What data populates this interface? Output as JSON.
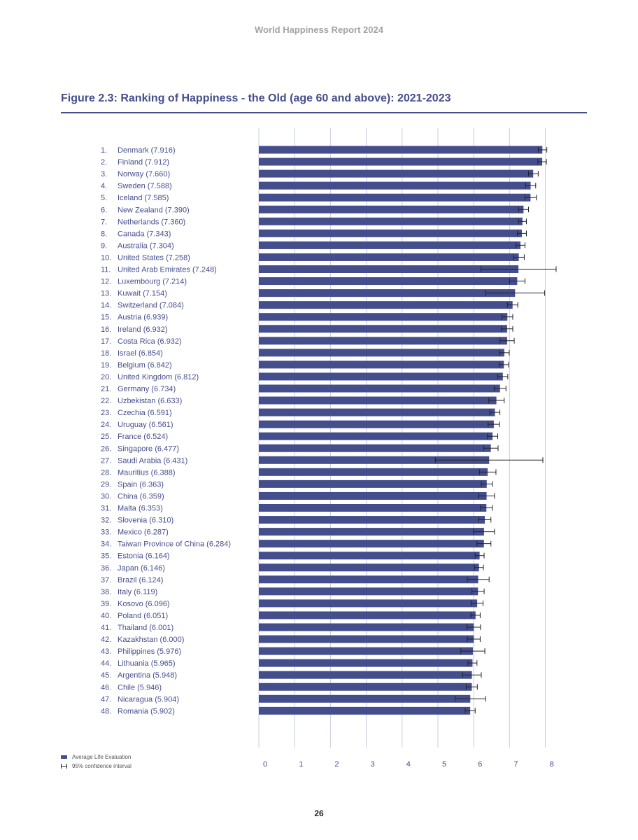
{
  "header": "World Happiness Report 2024",
  "page_number": "26",
  "legend": {
    "bar": "Average Life Evaluation",
    "ci": "95% confidence interval"
  },
  "colors": {
    "bar": "#454e8c",
    "grid": "#c9cce0",
    "whisker": "#222222"
  },
  "chart_data": {
    "type": "bar",
    "orientation": "horizontal",
    "title": "Figure 2.3: Ranking of Happiness - the Old (age 60 and above): 2021-2023",
    "xlim": [
      0,
      8
    ],
    "xticks": [
      "0",
      "1",
      "2",
      "3",
      "4",
      "5",
      "6",
      "7",
      "8"
    ],
    "grid": true,
    "legend_position": "bottom-left",
    "categories": [
      {
        "rank": "1.",
        "label": "Denmark (7.916)",
        "value": 7.916,
        "ci": [
          7.8,
          8.04
        ]
      },
      {
        "rank": "2.",
        "label": "Finland (7.912)",
        "value": 7.912,
        "ci": [
          7.79,
          8.03
        ]
      },
      {
        "rank": "3.",
        "label": "Norway (7.660)",
        "value": 7.66,
        "ci": [
          7.53,
          7.8
        ]
      },
      {
        "rank": "4.",
        "label": "Sweden (7.588)",
        "value": 7.588,
        "ci": [
          7.45,
          7.73
        ]
      },
      {
        "rank": "5.",
        "label": "Iceland (7.585)",
        "value": 7.585,
        "ci": [
          7.43,
          7.75
        ]
      },
      {
        "rank": "6.",
        "label": "New Zealand (7.390)",
        "value": 7.39,
        "ci": [
          7.25,
          7.53
        ]
      },
      {
        "rank": "7.",
        "label": "Netherlands (7.360)",
        "value": 7.36,
        "ci": [
          7.25,
          7.47
        ]
      },
      {
        "rank": "8.",
        "label": "Canada (7.343)",
        "value": 7.343,
        "ci": [
          7.22,
          7.47
        ]
      },
      {
        "rank": "9.",
        "label": "Australia (7.304)",
        "value": 7.304,
        "ci": [
          7.18,
          7.43
        ]
      },
      {
        "rank": "10.",
        "label": "United States (7.258)",
        "value": 7.258,
        "ci": [
          7.11,
          7.41
        ]
      },
      {
        "rank": "11.",
        "label": "United Arab Emirates (7.248)",
        "value": 7.248,
        "ci": [
          6.2,
          8.3
        ]
      },
      {
        "rank": "12.",
        "label": "Luxembourg (7.214)",
        "value": 7.214,
        "ci": [
          7.0,
          7.43
        ]
      },
      {
        "rank": "13.",
        "label": "Kuwait (7.154)",
        "value": 7.154,
        "ci": [
          6.33,
          7.98
        ]
      },
      {
        "rank": "14.",
        "label": "Switzerland (7.084)",
        "value": 7.084,
        "ci": [
          6.94,
          7.23
        ]
      },
      {
        "rank": "15.",
        "label": "Austria (6.939)",
        "value": 6.939,
        "ci": [
          6.79,
          7.09
        ]
      },
      {
        "rank": "16.",
        "label": "Ireland (6.932)",
        "value": 6.932,
        "ci": [
          6.77,
          7.09
        ]
      },
      {
        "rank": "17.",
        "label": "Costa Rica (6.932)",
        "value": 6.932,
        "ci": [
          6.73,
          7.13
        ]
      },
      {
        "rank": "18.",
        "label": "Israel (6.854)",
        "value": 6.854,
        "ci": [
          6.72,
          6.99
        ]
      },
      {
        "rank": "19.",
        "label": "Belgium (6.842)",
        "value": 6.842,
        "ci": [
          6.71,
          6.97
        ]
      },
      {
        "rank": "20.",
        "label": "United Kingdom (6.812)",
        "value": 6.812,
        "ci": [
          6.67,
          6.95
        ]
      },
      {
        "rank": "21.",
        "label": "Germany (6.734)",
        "value": 6.734,
        "ci": [
          6.57,
          6.9
        ]
      },
      {
        "rank": "22.",
        "label": "Uzbekistan (6.633)",
        "value": 6.633,
        "ci": [
          6.42,
          6.85
        ]
      },
      {
        "rank": "23.",
        "label": "Czechia (6.591)",
        "value": 6.591,
        "ci": [
          6.45,
          6.73
        ]
      },
      {
        "rank": "24.",
        "label": "Uruguay (6.561)",
        "value": 6.561,
        "ci": [
          6.4,
          6.72
        ]
      },
      {
        "rank": "25.",
        "label": "France (6.524)",
        "value": 6.524,
        "ci": [
          6.38,
          6.67
        ]
      },
      {
        "rank": "26.",
        "label": "Singapore (6.477)",
        "value": 6.477,
        "ci": [
          6.28,
          6.68
        ]
      },
      {
        "rank": "27.",
        "label": "Saudi Arabia (6.431)",
        "value": 6.431,
        "ci": [
          4.93,
          7.93
        ]
      },
      {
        "rank": "28.",
        "label": "Mauritius (6.388)",
        "value": 6.388,
        "ci": [
          6.16,
          6.62
        ]
      },
      {
        "rank": "29.",
        "label": "Spain (6.363)",
        "value": 6.363,
        "ci": [
          6.21,
          6.52
        ]
      },
      {
        "rank": "30.",
        "label": "China (6.359)",
        "value": 6.359,
        "ci": [
          6.14,
          6.58
        ]
      },
      {
        "rank": "31.",
        "label": "Malta (6.353)",
        "value": 6.353,
        "ci": [
          6.19,
          6.52
        ]
      },
      {
        "rank": "32.",
        "label": "Slovenia (6.310)",
        "value": 6.31,
        "ci": [
          6.14,
          6.48
        ]
      },
      {
        "rank": "33.",
        "label": "Mexico (6.287)",
        "value": 6.287,
        "ci": [
          5.99,
          6.58
        ]
      },
      {
        "rank": "34.",
        "label": "Taiwan Province of China (6.284)",
        "value": 6.284,
        "ci": [
          6.09,
          6.48
        ]
      },
      {
        "rank": "35.",
        "label": "Estonia (6.164)",
        "value": 6.164,
        "ci": [
          6.04,
          6.29
        ]
      },
      {
        "rank": "36.",
        "label": "Japan (6.146)",
        "value": 6.146,
        "ci": [
          6.02,
          6.27
        ]
      },
      {
        "rank": "37.",
        "label": "Brazil (6.124)",
        "value": 6.124,
        "ci": [
          5.82,
          6.43
        ]
      },
      {
        "rank": "38.",
        "label": "Italy (6.119)",
        "value": 6.119,
        "ci": [
          5.95,
          6.29
        ]
      },
      {
        "rank": "39.",
        "label": "Kosovo (6.096)",
        "value": 6.096,
        "ci": [
          5.93,
          6.26
        ]
      },
      {
        "rank": "40.",
        "label": "Poland (6.051)",
        "value": 6.051,
        "ci": [
          5.92,
          6.18
        ]
      },
      {
        "rank": "41.",
        "label": "Thailand (6.001)",
        "value": 6.001,
        "ci": [
          5.81,
          6.19
        ]
      },
      {
        "rank": "42.",
        "label": "Kazakhstan (6.000)",
        "value": 6.0,
        "ci": [
          5.82,
          6.18
        ]
      },
      {
        "rank": "43.",
        "label": "Philippines (5.976)",
        "value": 5.976,
        "ci": [
          5.64,
          6.31
        ]
      },
      {
        "rank": "44.",
        "label": "Lithuania (5.965)",
        "value": 5.965,
        "ci": [
          5.84,
          6.09
        ]
      },
      {
        "rank": "45.",
        "label": "Argentina (5.948)",
        "value": 5.948,
        "ci": [
          5.69,
          6.21
        ]
      },
      {
        "rank": "46.",
        "label": "Chile (5.946)",
        "value": 5.946,
        "ci": [
          5.79,
          6.1
        ]
      },
      {
        "rank": "47.",
        "label": "Nicaragua (5.904)",
        "value": 5.904,
        "ci": [
          5.48,
          6.33
        ]
      },
      {
        "rank": "48.",
        "label": "Romania (5.902)",
        "value": 5.902,
        "ci": [
          5.76,
          6.04
        ]
      }
    ]
  }
}
